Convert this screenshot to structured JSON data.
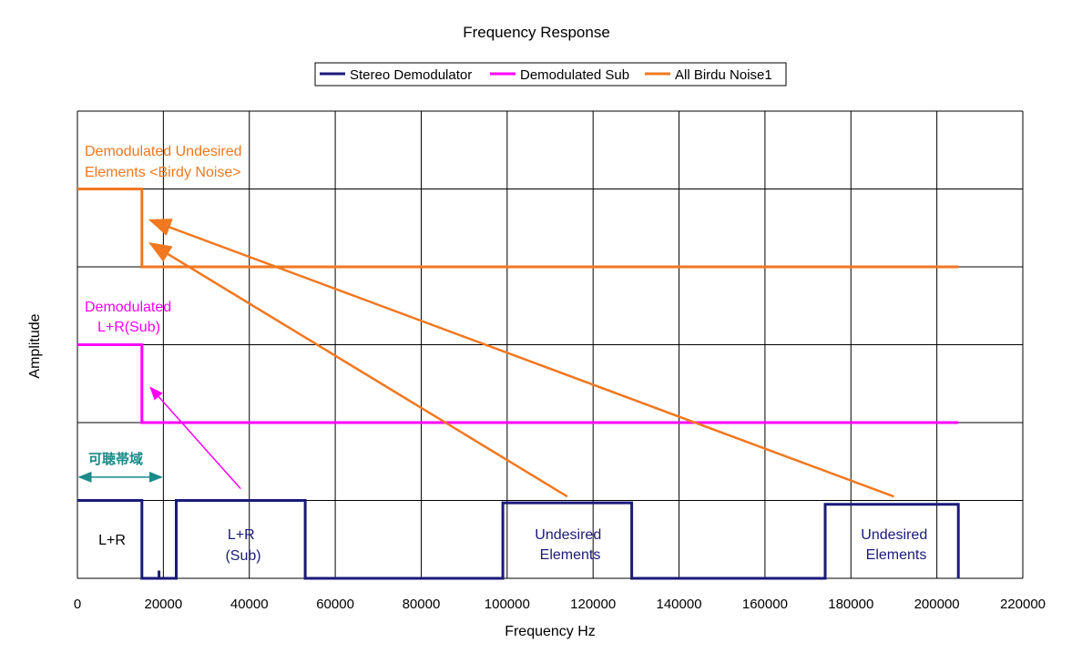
{
  "chart_data": {
    "type": "line",
    "title": "Frequency Response",
    "xlabel": "Frequency Hz",
    "ylabel": "Amplitude",
    "xlim": [
      0,
      220000
    ],
    "ylim": [
      0,
      6
    ],
    "xticks": [
      0,
      20000,
      40000,
      60000,
      80000,
      100000,
      120000,
      140000,
      160000,
      180000,
      200000,
      220000
    ],
    "yticks": [
      0,
      1,
      2,
      3,
      4,
      5,
      6
    ],
    "grid": true,
    "legend_position": "top-center",
    "series": [
      {
        "name": "Stereo Demodulator",
        "color": "#1a1a7a",
        "points": [
          [
            0,
            1
          ],
          [
            15000,
            1
          ],
          [
            15000,
            0
          ],
          [
            19000,
            0
          ],
          [
            19000,
            0.1
          ],
          [
            19000,
            0
          ],
          [
            23000,
            0
          ],
          [
            23000,
            1
          ],
          [
            53000,
            1
          ],
          [
            53000,
            0
          ],
          [
            99000,
            0
          ],
          [
            99000,
            0.97
          ],
          [
            129000,
            0.97
          ],
          [
            129000,
            0
          ],
          [
            174000,
            0
          ],
          [
            174000,
            0.95
          ],
          [
            205000,
            0.95
          ],
          [
            205000,
            0
          ]
        ]
      },
      {
        "name": "Demodulated Sub",
        "color": "#ff00ff",
        "points": [
          [
            0,
            3
          ],
          [
            15000,
            3
          ],
          [
            15000,
            2
          ],
          [
            205000,
            2
          ]
        ]
      },
      {
        "name": "All Birdu Noise1",
        "color": "#f07820",
        "points": [
          [
            0,
            5
          ],
          [
            15000,
            5
          ],
          [
            15000,
            4
          ],
          [
            205000,
            4
          ]
        ]
      }
    ],
    "annotations": {
      "birdy_label": [
        "Demodulated Undesired",
        "Elements <Birdy Noise>"
      ],
      "sub_label": [
        "Demodulated",
        "L+R(Sub)"
      ],
      "audible_label": "可聴帯域",
      "block_lr": "L+R",
      "block_sub": [
        "L+R",
        "(Sub)"
      ],
      "block_undesired_1": [
        "Undesired",
        "Elements"
      ],
      "block_undesired_2": [
        "Undesired",
        "Elements"
      ]
    },
    "arrows": [
      {
        "color": "#f07820",
        "from": [
          114000,
          1.05
        ],
        "to": [
          17000,
          4.3
        ]
      },
      {
        "color": "#f07820",
        "from": [
          190000,
          1.05
        ],
        "to": [
          17000,
          4.6
        ]
      },
      {
        "color": "#ff00ff",
        "from": [
          38000,
          1.15
        ],
        "to": [
          17000,
          2.45
        ]
      }
    ],
    "span": {
      "color": "#1a8a8a",
      "from": 0,
      "to": 20000,
      "y": 1.3
    }
  }
}
